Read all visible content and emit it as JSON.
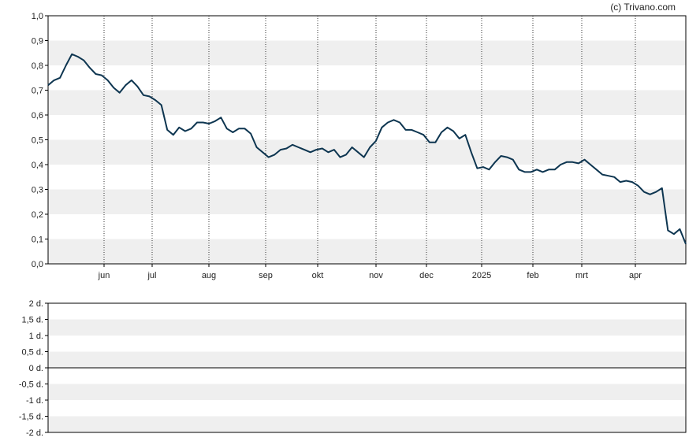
{
  "copyright": "(c) Trivano.com",
  "colors": {
    "line": "#0d3550",
    "band": "#efefef",
    "axis": "#000000"
  },
  "chart_data": [
    {
      "type": "line",
      "title": "",
      "xlabel": "",
      "ylabel": "",
      "grid": "horizontal bands, dotted vertical month lines",
      "ylim": [
        0,
        1.0
      ],
      "y_ticks": [
        "0,0",
        "0,1",
        "0,2",
        "0,3",
        "0,4",
        "0,5",
        "0,6",
        "0,7",
        "0,8",
        "0,9",
        "1,0"
      ],
      "x_ticks": [
        "jun",
        "jul",
        "aug",
        "sep",
        "okt",
        "nov",
        "dec",
        "2025",
        "feb",
        "mrt",
        "apr"
      ],
      "series": [
        {
          "values": [
            0.72,
            0.74,
            0.75,
            0.8,
            0.845,
            0.835,
            0.82,
            0.79,
            0.765,
            0.76,
            0.74,
            0.71,
            0.69,
            0.72,
            0.74,
            0.715,
            0.68,
            0.675,
            0.66,
            0.64,
            0.54,
            0.52,
            0.55,
            0.535,
            0.545,
            0.57,
            0.57,
            0.565,
            0.575,
            0.59,
            0.545,
            0.53,
            0.545,
            0.545,
            0.525,
            0.47,
            0.45,
            0.43,
            0.44,
            0.46,
            0.465,
            0.48,
            0.47,
            0.46,
            0.45,
            0.46,
            0.465,
            0.45,
            0.46,
            0.43,
            0.44,
            0.47,
            0.45,
            0.43,
            0.47,
            0.495,
            0.55,
            0.57,
            0.58,
            0.57,
            0.54,
            0.54,
            0.53,
            0.52,
            0.49,
            0.49,
            0.53,
            0.55,
            0.535,
            0.505,
            0.52,
            0.45,
            0.385,
            0.39,
            0.38,
            0.41,
            0.435,
            0.43,
            0.42,
            0.38,
            0.37,
            0.37,
            0.38,
            0.37,
            0.38,
            0.38,
            0.4,
            0.41,
            0.41,
            0.405,
            0.42,
            0.4,
            0.38,
            0.36,
            0.355,
            0.35,
            0.33,
            0.335,
            0.33,
            0.315,
            0.29,
            0.28,
            0.29,
            0.305,
            0.135,
            0.12,
            0.14,
            0.08
          ]
        }
      ]
    },
    {
      "type": "line",
      "title": "",
      "xlabel": "",
      "ylabel": "",
      "grid": "horizontal bands",
      "ylim": [
        -2,
        2
      ],
      "y_ticks": [
        "-2 d.",
        "-1,5 d.",
        "-1 d.",
        "-0,5 d.",
        "0 d.",
        "0,5 d.",
        "1 d.",
        "1,5 d.",
        "2 d."
      ],
      "series": []
    }
  ]
}
